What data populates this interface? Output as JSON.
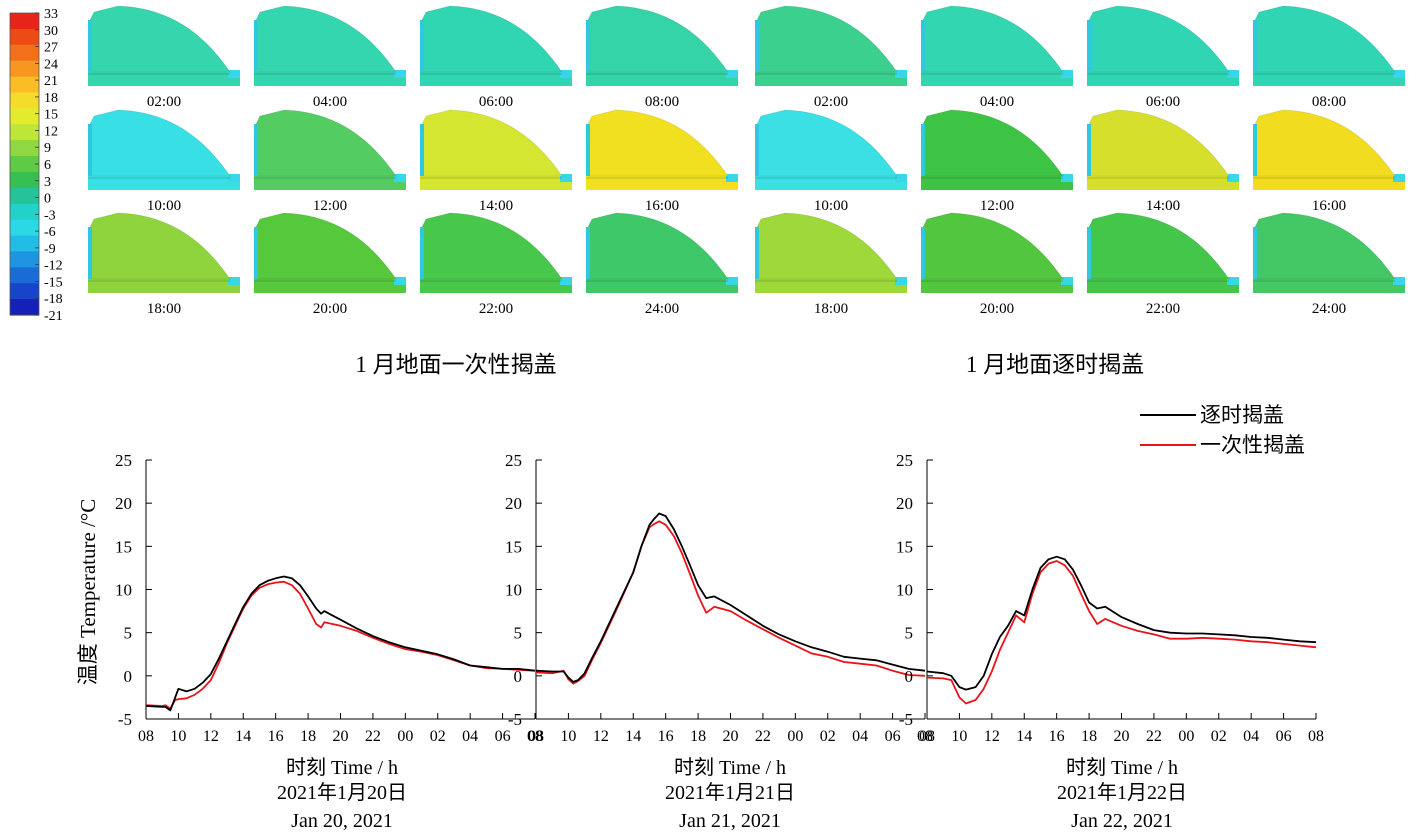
{
  "colorbar": {
    "labels": [
      "33",
      "30",
      "27",
      "24",
      "21",
      "18",
      "15",
      "12",
      "9",
      "6",
      "3",
      "0",
      "-3",
      "-6",
      "-9",
      "-12",
      "-15",
      "-18",
      "-21"
    ],
    "colors": [
      "#e8231a",
      "#ee4a14",
      "#f3701a",
      "#f79620",
      "#fbbc24",
      "#f6dc2a",
      "#e4ea2e",
      "#bde637",
      "#8fd841",
      "#5fca43",
      "#36c053",
      "#25c39a",
      "#22d2c8",
      "#2ad8e6",
      "#22bde6",
      "#1d95e0",
      "#1a6bd6",
      "#1744c9",
      "#1520b8"
    ]
  },
  "snapshots": {
    "panels": [
      {
        "label": "02:00",
        "fill": "#35d6ad"
      },
      {
        "label": "04:00",
        "fill": "#33d6ae"
      },
      {
        "label": "06:00",
        "fill": "#30d5b2"
      },
      {
        "label": "08:00",
        "fill": "#34d4a8"
      },
      {
        "label": "10:00",
        "fill": "#38e0e6"
      },
      {
        "label": "12:00",
        "fill": "#53cd62"
      },
      {
        "label": "14:00",
        "fill": "#d4e62f"
      },
      {
        "label": "16:00",
        "fill": "#f0e020"
      },
      {
        "label": "18:00",
        "fill": "#8fd43c"
      },
      {
        "label": "20:00",
        "fill": "#55c93b"
      },
      {
        "label": "22:00",
        "fill": "#48c84a"
      },
      {
        "label": "24:00",
        "fill": "#3fc86a"
      },
      {
        "label": "02:00",
        "fill": "#3bd08e"
      },
      {
        "label": "04:00",
        "fill": "#32d6b0"
      },
      {
        "label": "06:00",
        "fill": "#30d6b4"
      },
      {
        "label": "08:00",
        "fill": "#30d6b4"
      },
      {
        "label": "10:00",
        "fill": "#3ae0e4"
      },
      {
        "label": "12:00",
        "fill": "#3ec444"
      },
      {
        "label": "14:00",
        "fill": "#d6e02c"
      },
      {
        "label": "16:00",
        "fill": "#f2dc20"
      },
      {
        "label": "18:00",
        "fill": "#9ed83a"
      },
      {
        "label": "20:00",
        "fill": "#52c63e"
      },
      {
        "label": "22:00",
        "fill": "#44c64a"
      },
      {
        "label": "24:00",
        "fill": "#44c866"
      }
    ],
    "caption_left": "1 月地面一次性揭盖",
    "caption_right": "1 月地面逐时揭盖"
  },
  "legend": {
    "entries": [
      {
        "name": "逐时揭盖",
        "color": "#000000"
      },
      {
        "name": "一次性揭盖",
        "color": "#e8141a"
      }
    ]
  },
  "chart": {
    "ylabel": "温度 Temperature /°C",
    "xlabel": "时刻 Time / h",
    "panel_dates": [
      {
        "cn": "2021年1月20日",
        "en": "Jan 20, 2021"
      },
      {
        "cn": "2021年1月21日",
        "en": "Jan 21, 2021"
      },
      {
        "cn": "2021年1月22日",
        "en": "Jan 22, 2021"
      }
    ],
    "y_ticks": [
      "25",
      "20",
      "15",
      "10",
      "5",
      "0",
      "-5"
    ]
  },
  "chart_data": {
    "type": "line",
    "ylim": [
      -5,
      25
    ],
    "y_ticks": [
      -5,
      0,
      5,
      10,
      15,
      20,
      25
    ],
    "x_tick_labels": [
      "08",
      "10",
      "12",
      "14",
      "16",
      "18",
      "20",
      "22",
      "00",
      "02",
      "04",
      "06",
      "08"
    ],
    "xlabel": "时刻 Time / h",
    "ylabel": "温度 Temperature /°C",
    "panels": [
      {
        "date": "2021年1月20日 Jan 20, 2021",
        "hours": [
          8,
          9,
          9.2,
          9.5,
          9.8,
          10,
          10.5,
          11,
          11.5,
          12,
          12.5,
          13,
          13.5,
          14,
          14.5,
          15,
          15.5,
          16,
          16.5,
          17,
          17.5,
          18,
          18.5,
          18.8,
          19,
          19.5,
          20,
          21,
          22,
          23,
          24,
          25,
          26,
          27,
          28,
          29,
          30,
          31,
          32
        ],
        "series": [
          {
            "name": "逐时揭盖",
            "values": [
              -3.5,
              -3.6,
              -3.6,
              -4.0,
              -2.5,
              -1.5,
              -1.8,
              -1.5,
              -0.8,
              0.2,
              2.0,
              4.0,
              6.0,
              8.0,
              9.5,
              10.5,
              11.0,
              11.3,
              11.5,
              11.3,
              10.5,
              9.2,
              7.8,
              7.2,
              7.5,
              7.0,
              6.5,
              5.5,
              4.6,
              3.9,
              3.3,
              2.9,
              2.5,
              1.9,
              1.2,
              1.0,
              0.8,
              0.8,
              0.6
            ]
          },
          {
            "name": "一次性揭盖",
            "values": [
              -3.4,
              -3.5,
              -3.4,
              -3.8,
              -2.8,
              -2.7,
              -2.6,
              -2.2,
              -1.5,
              -0.5,
              1.5,
              3.8,
              5.8,
              7.8,
              9.3,
              10.2,
              10.6,
              10.8,
              10.9,
              10.5,
              9.5,
              7.8,
              6.0,
              5.6,
              6.2,
              6.0,
              5.8,
              5.2,
              4.4,
              3.7,
              3.1,
              2.8,
              2.4,
              1.8,
              1.2,
              0.9,
              0.8,
              0.7,
              0.6
            ]
          }
        ]
      },
      {
        "date": "2021年1月21日 Jan 21, 2021",
        "hours": [
          8,
          9,
          9.7,
          10,
          10.3,
          10.6,
          11,
          11.5,
          12,
          13,
          14,
          14.5,
          15,
          15.3,
          15.6,
          16,
          16.5,
          17,
          17.5,
          18,
          18.5,
          19,
          20,
          21,
          22,
          23,
          24,
          25,
          26,
          27,
          28,
          29,
          30,
          31,
          32
        ],
        "series": [
          {
            "name": "逐时揭盖",
            "values": [
              0.6,
              0.5,
              0.5,
              -0.2,
              -0.7,
              -0.5,
              0.3,
              2.2,
              4.0,
              8.0,
              12.0,
              15.0,
              17.5,
              18.2,
              18.8,
              18.5,
              17.0,
              15.0,
              12.8,
              10.5,
              9.0,
              9.2,
              8.2,
              7.0,
              5.8,
              4.8,
              4.0,
              3.3,
              2.8,
              2.2,
              2.0,
              1.8,
              1.3,
              0.8,
              0.6
            ]
          },
          {
            "name": "一次性揭盖",
            "values": [
              0.4,
              0.3,
              0.6,
              -0.4,
              -0.9,
              -0.6,
              0.0,
              2.0,
              3.8,
              7.8,
              12.0,
              15.0,
              17.2,
              17.6,
              17.9,
              17.5,
              16.2,
              14.2,
              11.8,
              9.3,
              7.3,
              8.0,
              7.5,
              6.4,
              5.4,
              4.4,
              3.5,
              2.6,
              2.2,
              1.6,
              1.4,
              1.2,
              0.6,
              0.1,
              0.0
            ]
          }
        ]
      },
      {
        "date": "2021年1月22日 Jan 22, 2021",
        "hours": [
          8,
          9,
          9.5,
          10,
          10.4,
          11,
          11.5,
          12,
          12.5,
          13,
          13.5,
          14,
          14.5,
          15,
          15.5,
          16,
          16.5,
          17,
          17.5,
          18,
          18.5,
          19,
          20,
          21,
          22,
          23,
          24,
          25,
          26,
          27,
          28,
          29,
          30,
          31,
          32
        ],
        "series": [
          {
            "name": "逐时揭盖",
            "values": [
              0.5,
              0.3,
              0.0,
              -1.3,
              -1.6,
              -1.3,
              0.0,
              2.5,
              4.5,
              5.8,
              7.5,
              7.0,
              10.0,
              12.5,
              13.5,
              13.8,
              13.5,
              12.3,
              10.5,
              8.5,
              7.8,
              8.0,
              6.8,
              6.0,
              5.3,
              5.0,
              4.9,
              4.9,
              4.8,
              4.7,
              4.5,
              4.4,
              4.2,
              4.0,
              3.9
            ]
          },
          {
            "name": "一次性揭盖",
            "values": [
              -0.2,
              -0.3,
              -0.5,
              -2.5,
              -3.2,
              -2.8,
              -1.5,
              0.5,
              3.0,
              5.0,
              7.0,
              6.2,
              9.5,
              12.0,
              13.0,
              13.3,
              12.8,
              11.6,
              9.5,
              7.5,
              6.0,
              6.6,
              5.8,
              5.2,
              4.8,
              4.3,
              4.3,
              4.4,
              4.3,
              4.2,
              4.0,
              3.9,
              3.7,
              3.5,
              3.3
            ]
          }
        ]
      }
    ]
  }
}
